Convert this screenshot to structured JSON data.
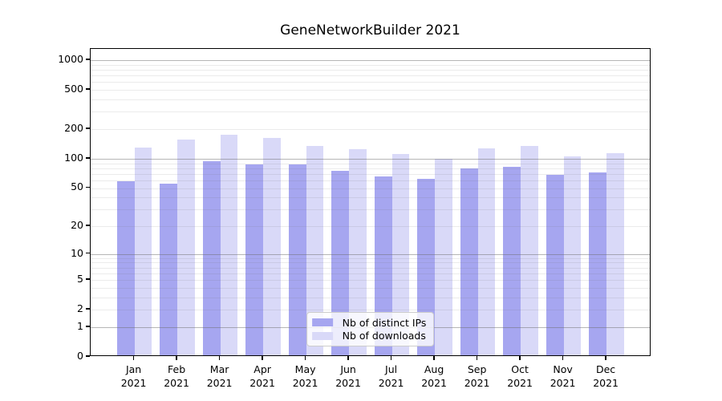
{
  "title": "GeneNetworkBuilder 2021",
  "chart_data": {
    "type": "bar",
    "title": "GeneNetworkBuilder 2021",
    "categories": [
      "Jan 2021",
      "Feb 2021",
      "Mar 2021",
      "Apr 2021",
      "May 2021",
      "Jun 2021",
      "Jul 2021",
      "Aug 2021",
      "Sep 2021",
      "Oct 2021",
      "Nov 2021",
      "Dec 2021"
    ],
    "months": [
      "Jan",
      "Feb",
      "Mar",
      "Apr",
      "May",
      "Jun",
      "Jul",
      "Aug",
      "Sep",
      "Oct",
      "Nov",
      "Dec"
    ],
    "year": "2021",
    "series": [
      {
        "name": "Nb of distinct IPs",
        "color": "#a6a6f0",
        "values": [
          57,
          53,
          91,
          84,
          85,
          73,
          63,
          60,
          76,
          79,
          66,
          70
        ]
      },
      {
        "name": "Nb of downloads",
        "color": "#d9d9f8",
        "values": [
          125,
          152,
          168,
          158,
          131,
          121,
          107,
          96,
          124,
          131,
          102,
          109
        ]
      }
    ],
    "xlabel": "",
    "ylabel": "",
    "yscale": "log10(1+y)",
    "yticks": [
      1000,
      500,
      200,
      100,
      50,
      20,
      10,
      5,
      2,
      1,
      0
    ],
    "ylim": [
      0,
      1300
    ],
    "grid": "horizontal major and minor, drawn above bars",
    "legend_position": "lower center"
  }
}
